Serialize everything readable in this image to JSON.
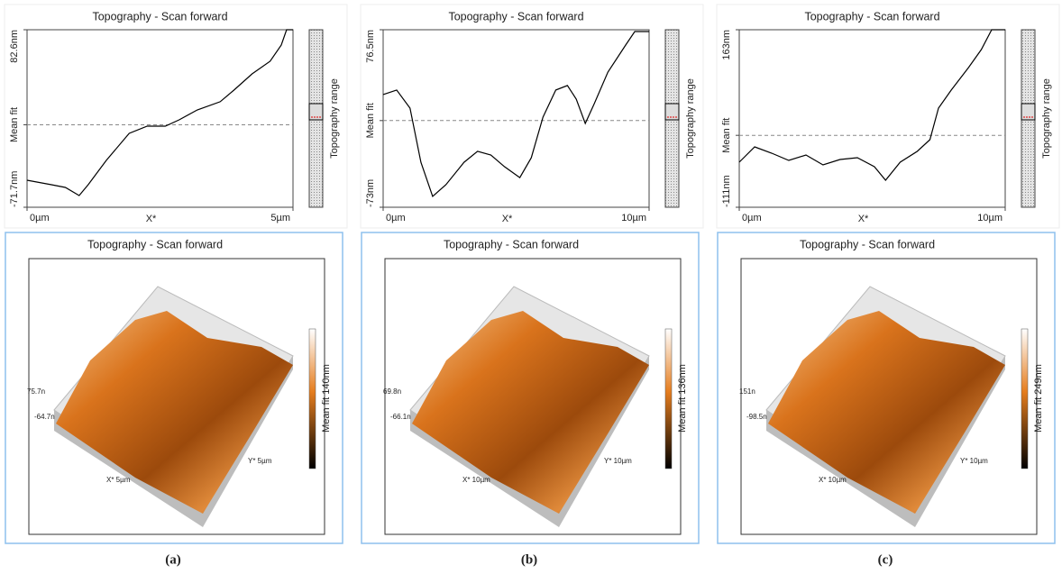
{
  "chart_data": [
    {
      "type": "line",
      "title": "Topography - Scan forward",
      "x_label": "X*",
      "range_label": "Topography range",
      "color": "#000000",
      "x": [
        0,
        0.46,
        0.72,
        0.98,
        1.15,
        1.49,
        1.92,
        2.26,
        2.6,
        2.86,
        3.2,
        3.63,
        3.89,
        4.23,
        4.57,
        4.78,
        4.88,
        5
      ],
      "values": [
        -48.2,
        -52.1,
        -54.5,
        -61.5,
        -52.1,
        -31.0,
        -7.5,
        -1.2,
        -1.2,
        4.3,
        12.9,
        20.0,
        30.1,
        44.2,
        55.2,
        69.3,
        82.6,
        82.6
      ],
      "xlim": [
        0,
        5
      ],
      "xticks": [
        {
          "value": 0,
          "label": "0µm"
        },
        {
          "value": 5,
          "label": "5µm"
        }
      ],
      "ylim": [
        -71.7,
        82.6
      ],
      "yticks": [
        {
          "value": 82.6,
          "label": "82.6nm"
        },
        {
          "value": 0,
          "label": "Mean fit"
        },
        {
          "value": -71.7,
          "label": "-71.7nm"
        }
      ]
    },
    {
      "type": "line",
      "title": "Topography - Scan forward",
      "x_label": "X*",
      "range_label": "Topography range",
      "color": "#000000",
      "x": [
        0,
        0.51,
        1.01,
        1.42,
        1.86,
        2.36,
        3.04,
        3.55,
        4.05,
        4.56,
        5.14,
        5.57,
        6.01,
        6.49,
        6.93,
        7.26,
        7.6,
        7.94,
        8.45,
        9.12,
        9.46,
        10
      ],
      "values": [
        21.9,
        25.7,
        10.5,
        -35.1,
        -63.9,
        -54.0,
        -35.1,
        -25.9,
        -29.0,
        -38.8,
        -48.0,
        -31.3,
        2.9,
        25.7,
        29.5,
        18.1,
        -2.4,
        14.3,
        40.8,
        63.6,
        75.0,
        75.0
      ],
      "xlim": [
        0,
        10
      ],
      "xticks": [
        {
          "value": 0,
          "label": "0µm"
        },
        {
          "value": 10,
          "label": "10µm"
        }
      ],
      "ylim": [
        -73,
        76.5
      ],
      "yticks": [
        {
          "value": 76.5,
          "label": "76.5nm"
        },
        {
          "value": 0,
          "label": "Mean fit"
        },
        {
          "value": -73,
          "label": "-73nm"
        }
      ]
    },
    {
      "type": "line",
      "title": "Topography - Scan forward",
      "x_label": "X*",
      "range_label": "Topography range",
      "color": "#000000",
      "x": [
        0,
        0.58,
        1.22,
        1.86,
        2.51,
        3.15,
        3.79,
        4.44,
        5.08,
        5.5,
        6.05,
        6.69,
        7.17,
        7.49,
        7.97,
        8.62,
        9.1,
        9.49,
        10
      ],
      "values": [
        -41.5,
        -17.8,
        -27.5,
        -38.7,
        -30.3,
        -45.6,
        -37.3,
        -34.5,
        -48.4,
        -69.3,
        -41.5,
        -24.8,
        -6.7,
        42.0,
        69.8,
        104.6,
        132.4,
        163.0,
        163.0
      ],
      "xlim": [
        0,
        10
      ],
      "xticks": [
        {
          "value": 0,
          "label": "0µm"
        },
        {
          "value": 10,
          "label": "10µm"
        }
      ],
      "ylim": [
        -111,
        163
      ],
      "yticks": [
        {
          "value": 163,
          "label": "163nm"
        },
        {
          "value": 0,
          "label": "Mean fit"
        },
        {
          "value": -111,
          "label": "-111nm"
        }
      ]
    }
  ],
  "surfaces": [
    {
      "title": "Topography - Scan forward",
      "z_top": "75.7n",
      "z_bottom": "-64.7n",
      "x_axis": "X* 5µm",
      "y_axis": "Y* 5µm",
      "colorbar": "Mean fit 140nm"
    },
    {
      "title": "Topography - Scan forward",
      "z_top": "69.8n",
      "z_bottom": "-66.1n",
      "x_axis": "X* 10µm",
      "y_axis": "Y* 10µm",
      "colorbar": "Mean fit 136nm"
    },
    {
      "title": "Topography - Scan forward",
      "z_top": "151n",
      "z_bottom": "-98.5n",
      "x_axis": "X* 10µm",
      "y_axis": "Y* 10µm",
      "colorbar": "Mean fit 249nm"
    }
  ],
  "captions": [
    "(a)",
    "(b)",
    "(c)"
  ]
}
